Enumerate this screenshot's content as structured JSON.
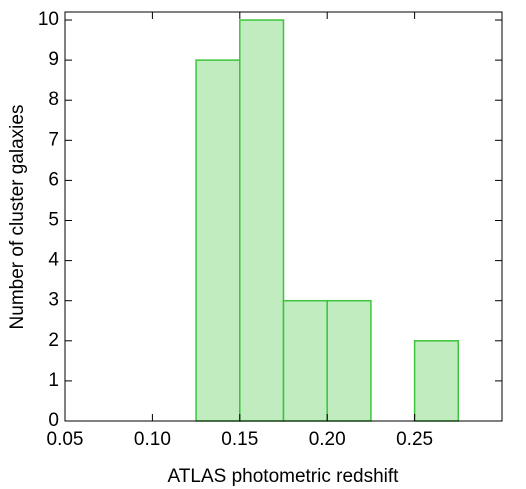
{
  "chart_data": {
    "type": "histogram",
    "xlabel": "ATLAS photometric redshift",
    "ylabel": "Number of cluster galaxies",
    "bins": [
      0.05,
      0.075,
      0.1,
      0.125,
      0.15,
      0.175,
      0.2,
      0.225,
      0.25,
      0.275
    ],
    "counts": [
      0,
      0,
      0,
      9,
      10,
      3,
      3,
      0,
      2
    ],
    "color": "#c0ecc0",
    "edge_color": "#3cc43c",
    "xlim": [
      0.05,
      0.3
    ],
    "ylim": [
      0,
      10.2
    ],
    "xticks": [
      0.05,
      {
        "value": 0.1,
        "label": "0.10"
      },
      0.15,
      {
        "value": 0.2,
        "label": "0.20"
      },
      0.25
    ],
    "yticks": [
      0,
      1,
      2,
      3,
      4,
      5,
      6,
      7,
      8,
      9,
      10
    ]
  }
}
